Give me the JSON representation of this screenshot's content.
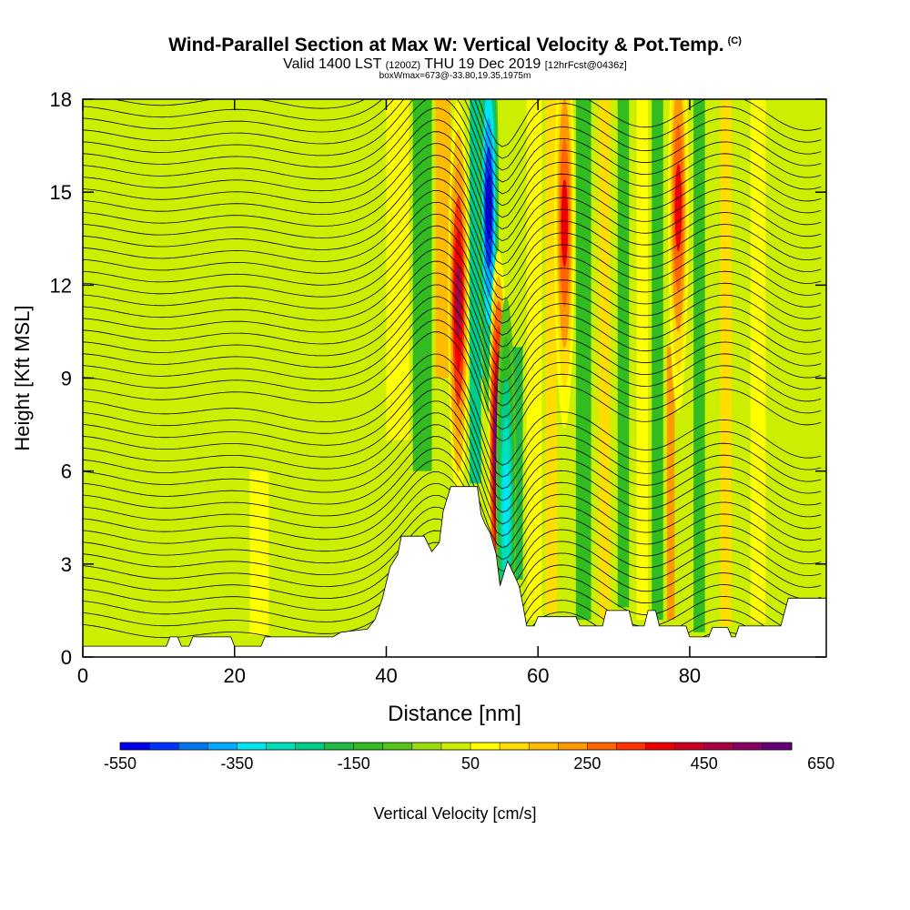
{
  "header": {
    "title": "Wind-Parallel Section at Max W: Vertical Velocity & Pot.Temp.",
    "copyright": "(C)",
    "valid_prefix": "Valid 1400 LST",
    "valid_utc": "(1200Z)",
    "valid_date": "THU 19 Dec 2019",
    "forecast": "[12hrFcst@0436z]",
    "subtitle": "boxWmax=673@-33.80,19.35,1975m"
  },
  "chart_data": {
    "type": "heatmap",
    "xlabel": "Distance [nm]",
    "ylabel": "Height [Kft MSL]",
    "xlim": [
      0,
      98
    ],
    "ylim": [
      0,
      18
    ],
    "xticks": [
      0,
      20,
      40,
      60,
      80
    ],
    "yticks": [
      0,
      3,
      6,
      9,
      12,
      15,
      18
    ],
    "colorbar": {
      "label": "Vertical Velocity [cm/s]",
      "tick_labels": [
        "-550",
        "-350",
        "-150",
        "50",
        "250",
        "450",
        "650"
      ],
      "levels_min": -550,
      "levels_step": 50,
      "colors": [
        "#0000ee",
        "#0033ff",
        "#0077ee",
        "#00aaff",
        "#00e6f0",
        "#00ddbb",
        "#00cc88",
        "#22bb44",
        "#33bb22",
        "#55c41c",
        "#99dd11",
        "#ccee00",
        "#ffff00",
        "#ffdd00",
        "#ffbb00",
        "#ff9900",
        "#ff6600",
        "#ff3300",
        "#ee0000",
        "#cc0022",
        "#aa0044",
        "#880066",
        "#660077"
      ]
    },
    "terrain_kft": [
      [
        0,
        0.35
      ],
      [
        11,
        0.35
      ],
      [
        11.5,
        0.65
      ],
      [
        12.5,
        0.65
      ],
      [
        13,
        0.35
      ],
      [
        14,
        0.35
      ],
      [
        14.5,
        0.65
      ],
      [
        19.5,
        0.65
      ],
      [
        20,
        0.35
      ],
      [
        23.5,
        0.35
      ],
      [
        24,
        0.65
      ],
      [
        33,
        0.65
      ],
      [
        34,
        0.8
      ],
      [
        37.5,
        0.9
      ],
      [
        38.5,
        1.2
      ],
      [
        39.5,
        1.9
      ],
      [
        40.5,
        2.9
      ],
      [
        41.5,
        3.3
      ],
      [
        42,
        3.9
      ],
      [
        45,
        3.9
      ],
      [
        46,
        3.4
      ],
      [
        47,
        3.7
      ],
      [
        47.5,
        4.7
      ],
      [
        48.5,
        5.5
      ],
      [
        52,
        5.5
      ],
      [
        52.5,
        4.6
      ],
      [
        53,
        4.3
      ],
      [
        53.7,
        4.0
      ],
      [
        54.5,
        3.3
      ],
      [
        55,
        2.3
      ],
      [
        55.5,
        2.7
      ],
      [
        56,
        3.1
      ],
      [
        57.5,
        2.3
      ],
      [
        58,
        1.7
      ],
      [
        58.5,
        1.0
      ],
      [
        59.5,
        1.0
      ],
      [
        60,
        1.3
      ],
      [
        65,
        1.3
      ],
      [
        65.5,
        1.0
      ],
      [
        68.5,
        1.0
      ],
      [
        69,
        1.5
      ],
      [
        72,
        1.5
      ],
      [
        72.5,
        1.0
      ],
      [
        74,
        1.0
      ],
      [
        74.5,
        1.5
      ],
      [
        75.5,
        1.5
      ],
      [
        76,
        1.0
      ],
      [
        79.5,
        1.0
      ],
      [
        80,
        0.65
      ],
      [
        82.5,
        0.65
      ],
      [
        83,
        0.95
      ],
      [
        85,
        0.95
      ],
      [
        85.5,
        0.65
      ],
      [
        86,
        0.65
      ],
      [
        86.5,
        1.0
      ],
      [
        92,
        1.0
      ],
      [
        93,
        1.9
      ],
      [
        98,
        1.9
      ]
    ],
    "w_features": [
      {
        "x": 49.5,
        "center_kft": 11.5,
        "value": 450
      },
      {
        "x": 53.5,
        "center_kft": 14.5,
        "value": -550
      },
      {
        "x": 54.8,
        "center_kft": 6.5,
        "value": 673
      },
      {
        "x": 55.8,
        "center_kft": 5.0,
        "value": -350
      },
      {
        "x": 63.5,
        "center_kft": 14.0,
        "value": 350
      },
      {
        "x": 78.5,
        "center_kft": 14.5,
        "value": 350
      }
    ]
  }
}
